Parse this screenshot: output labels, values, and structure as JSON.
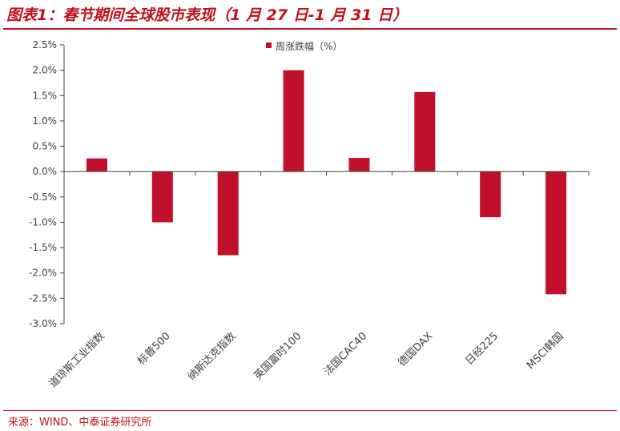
{
  "header": {
    "title": "图表1：春节期间全球股市表现（1 月 27 日-1 月 31 日）"
  },
  "footer": {
    "source": "来源：WIND、中泰证券研究所"
  },
  "colors": {
    "accent": "#c0101a",
    "bar": "#c0102b",
    "axis": "#404040",
    "text": "#404040"
  },
  "chart_data": {
    "type": "bar",
    "categories": [
      "道琼斯工业指数",
      "标普500",
      "纳斯达克指数",
      "英国富时100",
      "法国CAC40",
      "德国DAX",
      "日经225",
      "MSCI韩国"
    ],
    "series": [
      {
        "name": "周涨跌幅（%）",
        "values": [
          0.26,
          -1.0,
          -1.65,
          2.0,
          0.27,
          1.57,
          -0.9,
          -2.42
        ]
      }
    ],
    "ylim": [
      -3.0,
      2.5
    ],
    "yticks": [
      2.5,
      2.0,
      1.5,
      1.0,
      0.5,
      0.0,
      -0.5,
      -1.0,
      -1.5,
      -2.0,
      -2.5,
      -3.0
    ],
    "ytick_labels": [
      "2.5%",
      "2.0%",
      "1.5%",
      "1.0%",
      "0.5%",
      "0.0%",
      "-0.5%",
      "-1.0%",
      "-1.5%",
      "-2.0%",
      "-2.5%",
      "-3.0%"
    ],
    "grid": false,
    "legend_position": "top-center"
  }
}
